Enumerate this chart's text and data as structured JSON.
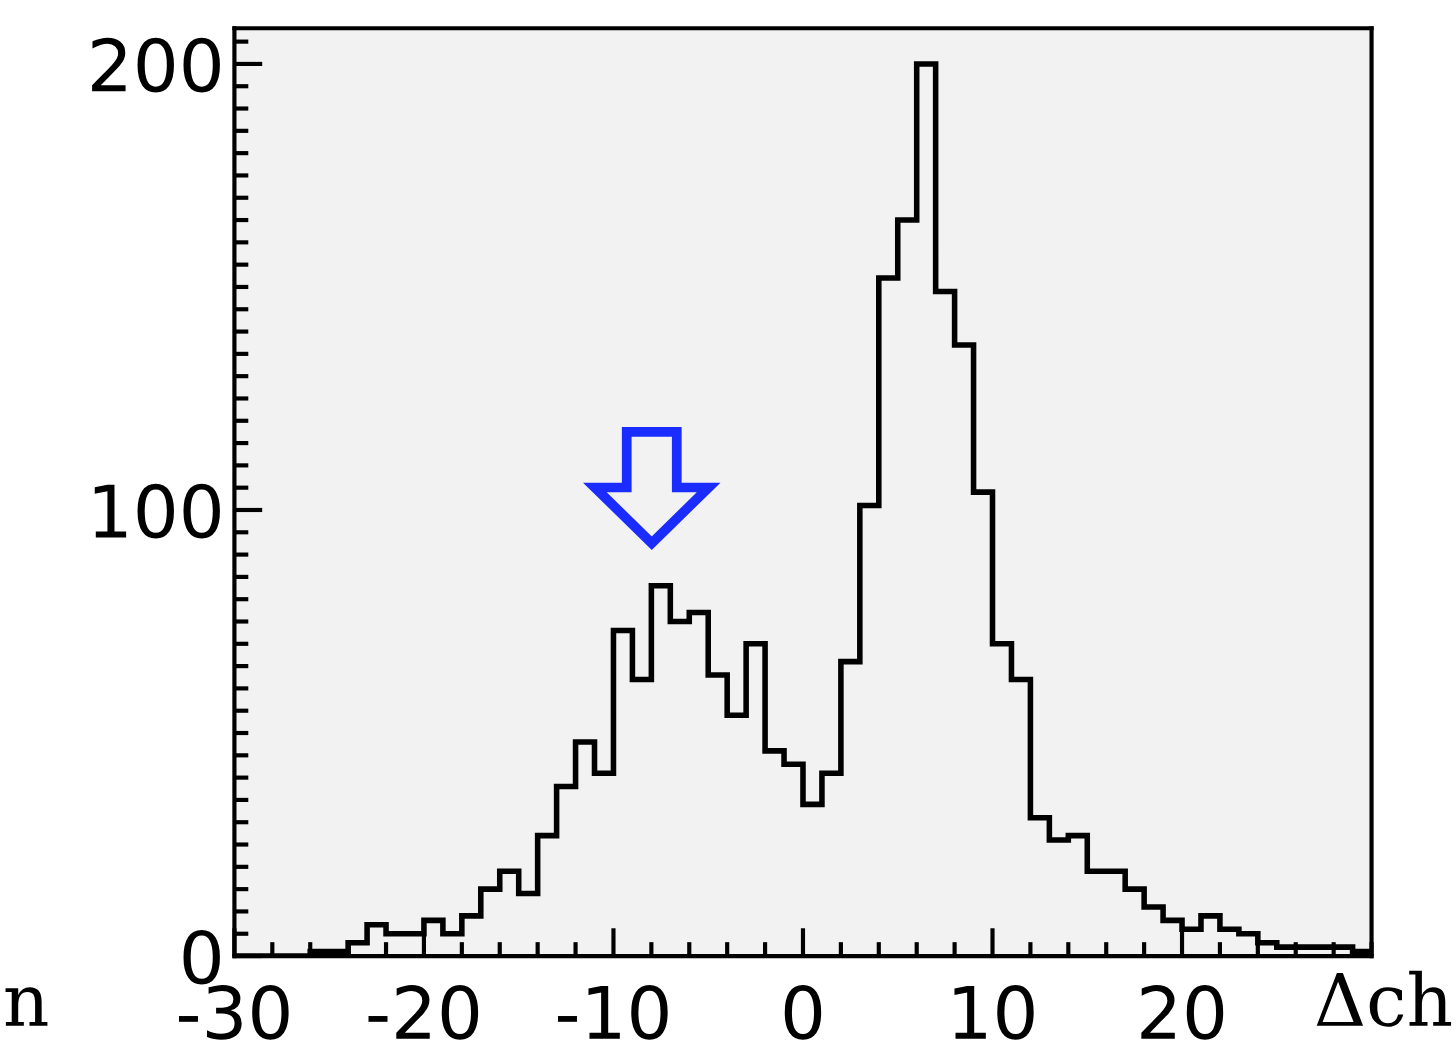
{
  "chart_data": {
    "type": "histogram",
    "xlabel": "Δch",
    "annotations": [
      "n"
    ],
    "bins": [
      -30,
      -29,
      -28,
      -27,
      -26,
      -25,
      -24,
      -23,
      -22,
      -21,
      -20,
      -19,
      -18,
      -17,
      -16,
      -15,
      -14,
      -13,
      -12,
      -11,
      -10,
      -9,
      -8,
      -7,
      -6,
      -5,
      -4,
      -3,
      -2,
      -1,
      0,
      1,
      2,
      3,
      4,
      5,
      6,
      7,
      8,
      9,
      10,
      11,
      12,
      13,
      14,
      15,
      16,
      17,
      18,
      19,
      20,
      21,
      22,
      23,
      24,
      25,
      26,
      27,
      28,
      29,
      30
    ],
    "values": [
      0,
      0,
      0,
      0,
      1,
      1,
      3,
      7,
      5,
      5,
      8,
      5,
      9,
      15,
      19,
      14,
      27,
      38,
      48,
      41,
      73,
      62,
      83,
      75,
      77,
      63,
      54,
      70,
      46,
      43,
      34,
      41,
      66,
      101,
      152,
      165,
      200,
      149,
      137,
      104,
      70,
      62,
      31,
      26,
      27,
      19,
      19,
      15,
      11,
      8,
      6,
      9,
      6,
      5,
      3,
      2,
      2,
      2,
      2,
      1
    ],
    "color": "#000000",
    "xlim": [
      -30,
      30
    ],
    "ylim": [
      0,
      208
    ],
    "xticks": [
      -30,
      -20,
      -10,
      0,
      10,
      20
    ],
    "yticks": [
      0,
      100,
      200
    ],
    "grid": false
  }
}
